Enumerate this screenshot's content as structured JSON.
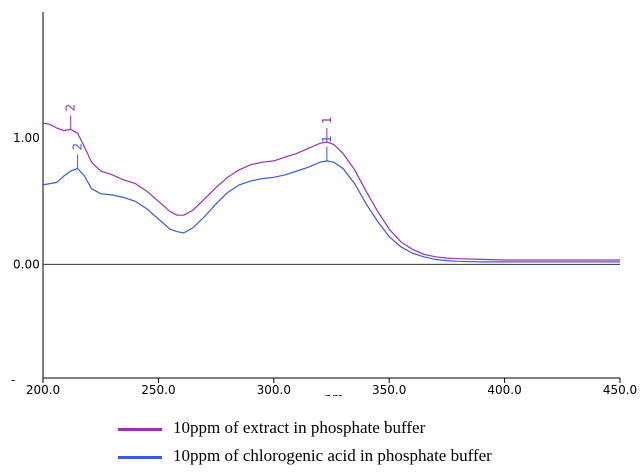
{
  "chart_data": {
    "type": "line",
    "xlabel": "nm",
    "xlim": [
      200,
      450
    ],
    "ylim": [
      -0.9,
      2.0
    ],
    "x_ticks": [
      200,
      250,
      300,
      350,
      400,
      450
    ],
    "x_tick_labels": [
      "200.0",
      "250.0",
      "300.0",
      "350.0",
      "400.0",
      "450.0"
    ],
    "y_ticks": [
      1.0,
      0.0
    ],
    "y_tick_labels": [
      "1.00",
      "0.00"
    ],
    "y_bottom_label": "-",
    "baseline": 0.0,
    "grid": false,
    "legend_position": "bottom",
    "series": [
      {
        "name": "10ppm of extract in phosphate buffer",
        "color": "#9b2fb0",
        "x": [
          200,
          203,
          206,
          209,
          212,
          215,
          218,
          221,
          225,
          230,
          235,
          240,
          245,
          250,
          255,
          258,
          261,
          265,
          270,
          275,
          280,
          285,
          290,
          295,
          300,
          305,
          310,
          315,
          320,
          323,
          326,
          330,
          335,
          340,
          345,
          350,
          355,
          360,
          365,
          370,
          375,
          380,
          390,
          400,
          410,
          420,
          430,
          440,
          450
        ],
        "y": [
          1.12,
          1.11,
          1.08,
          1.06,
          1.07,
          1.04,
          0.93,
          0.81,
          0.74,
          0.71,
          0.67,
          0.64,
          0.58,
          0.5,
          0.42,
          0.39,
          0.39,
          0.43,
          0.52,
          0.61,
          0.69,
          0.75,
          0.79,
          0.81,
          0.82,
          0.85,
          0.88,
          0.92,
          0.96,
          0.97,
          0.95,
          0.88,
          0.75,
          0.58,
          0.42,
          0.28,
          0.18,
          0.12,
          0.08,
          0.06,
          0.05,
          0.045,
          0.04,
          0.035,
          0.035,
          0.035,
          0.035,
          0.035,
          0.035
        ]
      },
      {
        "name": "10ppm of chlorogenic acid in phosphate buffer",
        "color": "#3a5bd9",
        "x": [
          200,
          203,
          206,
          209,
          212,
          215,
          218,
          221,
          225,
          230,
          235,
          240,
          245,
          250,
          255,
          258,
          261,
          265,
          270,
          275,
          280,
          285,
          290,
          295,
          300,
          305,
          310,
          315,
          320,
          323,
          326,
          330,
          335,
          340,
          345,
          350,
          355,
          360,
          365,
          370,
          375,
          380,
          390,
          400,
          410,
          420,
          430,
          440,
          450
        ],
        "y": [
          0.63,
          0.64,
          0.65,
          0.7,
          0.74,
          0.76,
          0.7,
          0.6,
          0.56,
          0.55,
          0.53,
          0.5,
          0.44,
          0.36,
          0.28,
          0.26,
          0.25,
          0.29,
          0.38,
          0.48,
          0.57,
          0.63,
          0.66,
          0.68,
          0.69,
          0.71,
          0.74,
          0.77,
          0.81,
          0.82,
          0.81,
          0.76,
          0.64,
          0.48,
          0.34,
          0.22,
          0.14,
          0.09,
          0.06,
          0.04,
          0.03,
          0.025,
          0.02,
          0.02,
          0.02,
          0.02,
          0.02,
          0.02,
          0.02
        ]
      }
    ],
    "annotations": [
      {
        "series": 0,
        "label": "2",
        "x": 212,
        "y": 1.07
      },
      {
        "series": 0,
        "label": "1",
        "x": 323,
        "y": 0.97
      },
      {
        "series": 1,
        "label": "2",
        "x": 215,
        "y": 0.76
      },
      {
        "series": 1,
        "label": "1",
        "x": 323,
        "y": 0.82
      }
    ]
  }
}
